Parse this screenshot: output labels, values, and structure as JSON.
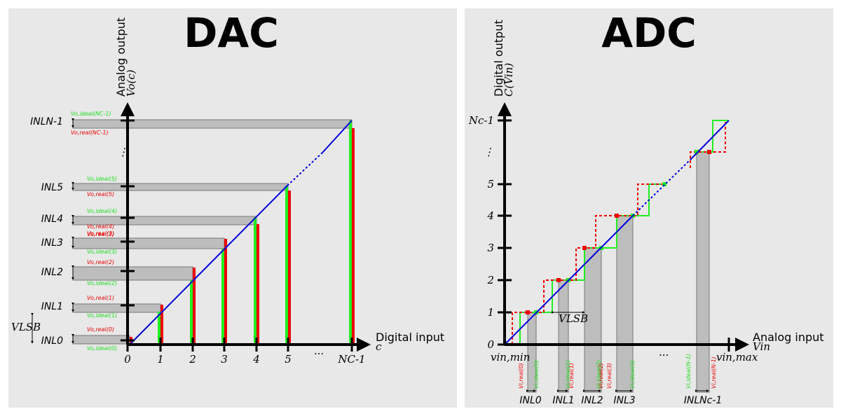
{
  "dac": {
    "title": "DAC",
    "x_axis_label": "Digital input",
    "x_axis_var": "c",
    "y_axis_label": "Analog output",
    "y_axis_var": "Vo(c)",
    "x_ticks": [
      "0",
      "1",
      "2",
      "3",
      "4",
      "5",
      "...",
      "NC-1"
    ],
    "y_dots": "⋮",
    "inl_labels": [
      "INL0",
      "INL1",
      "INL2",
      "INL3",
      "INL4",
      "INL5",
      "INLN-1"
    ],
    "vlsb": "VLSB",
    "ideal_labels": [
      "Vo,ideal(0)",
      "Vo,ideal(1)",
      "Vo,ideal(2)",
      "Vo,ideal(3)",
      "Vo,ideal(4)",
      "Vo,ideal(5)",
      "Vo,ideal(NC-1)"
    ],
    "real_labels": [
      "Vo,real(0)",
      "Vo,real(1)",
      "Vo,real(2)",
      "Vo,real(3)",
      "Vo,real(4)",
      "Vo,real(5)",
      "Vo,real(NC-1)"
    ]
  },
  "adc": {
    "title": "ADC",
    "x_axis_label": "Analog input",
    "x_axis_var": "Vin",
    "y_axis_label": "Digital output",
    "y_axis_var": "C(Vin)",
    "y_ticks": [
      "0",
      "1",
      "2",
      "3",
      "4",
      "5",
      "⋮",
      "Nc-1"
    ],
    "x_min": "vin,min",
    "x_max": "vin,max",
    "x_dots": "...",
    "vlsb": "VLSB",
    "inl_labels": [
      "INL0",
      "INL1",
      "INL2",
      "INL3",
      "INLNc-1"
    ],
    "real_labels": [
      "Vi,real(0)",
      "Vi,real(1)",
      "Vi,real(2)",
      "Vi,real(3)",
      "Vi,real(N-1)"
    ],
    "ideal_labels": [
      "Vi,ideal(0)",
      "Vi,ideal(1)",
      "Vi,ideal(2)",
      "Vi,ideal(3)",
      "Vi,ideal(N-1)"
    ]
  },
  "colors": {
    "ideal": "#22ee22",
    "real": "#ee0000",
    "line": "#0000dd",
    "band": "#bdbdbd"
  }
}
